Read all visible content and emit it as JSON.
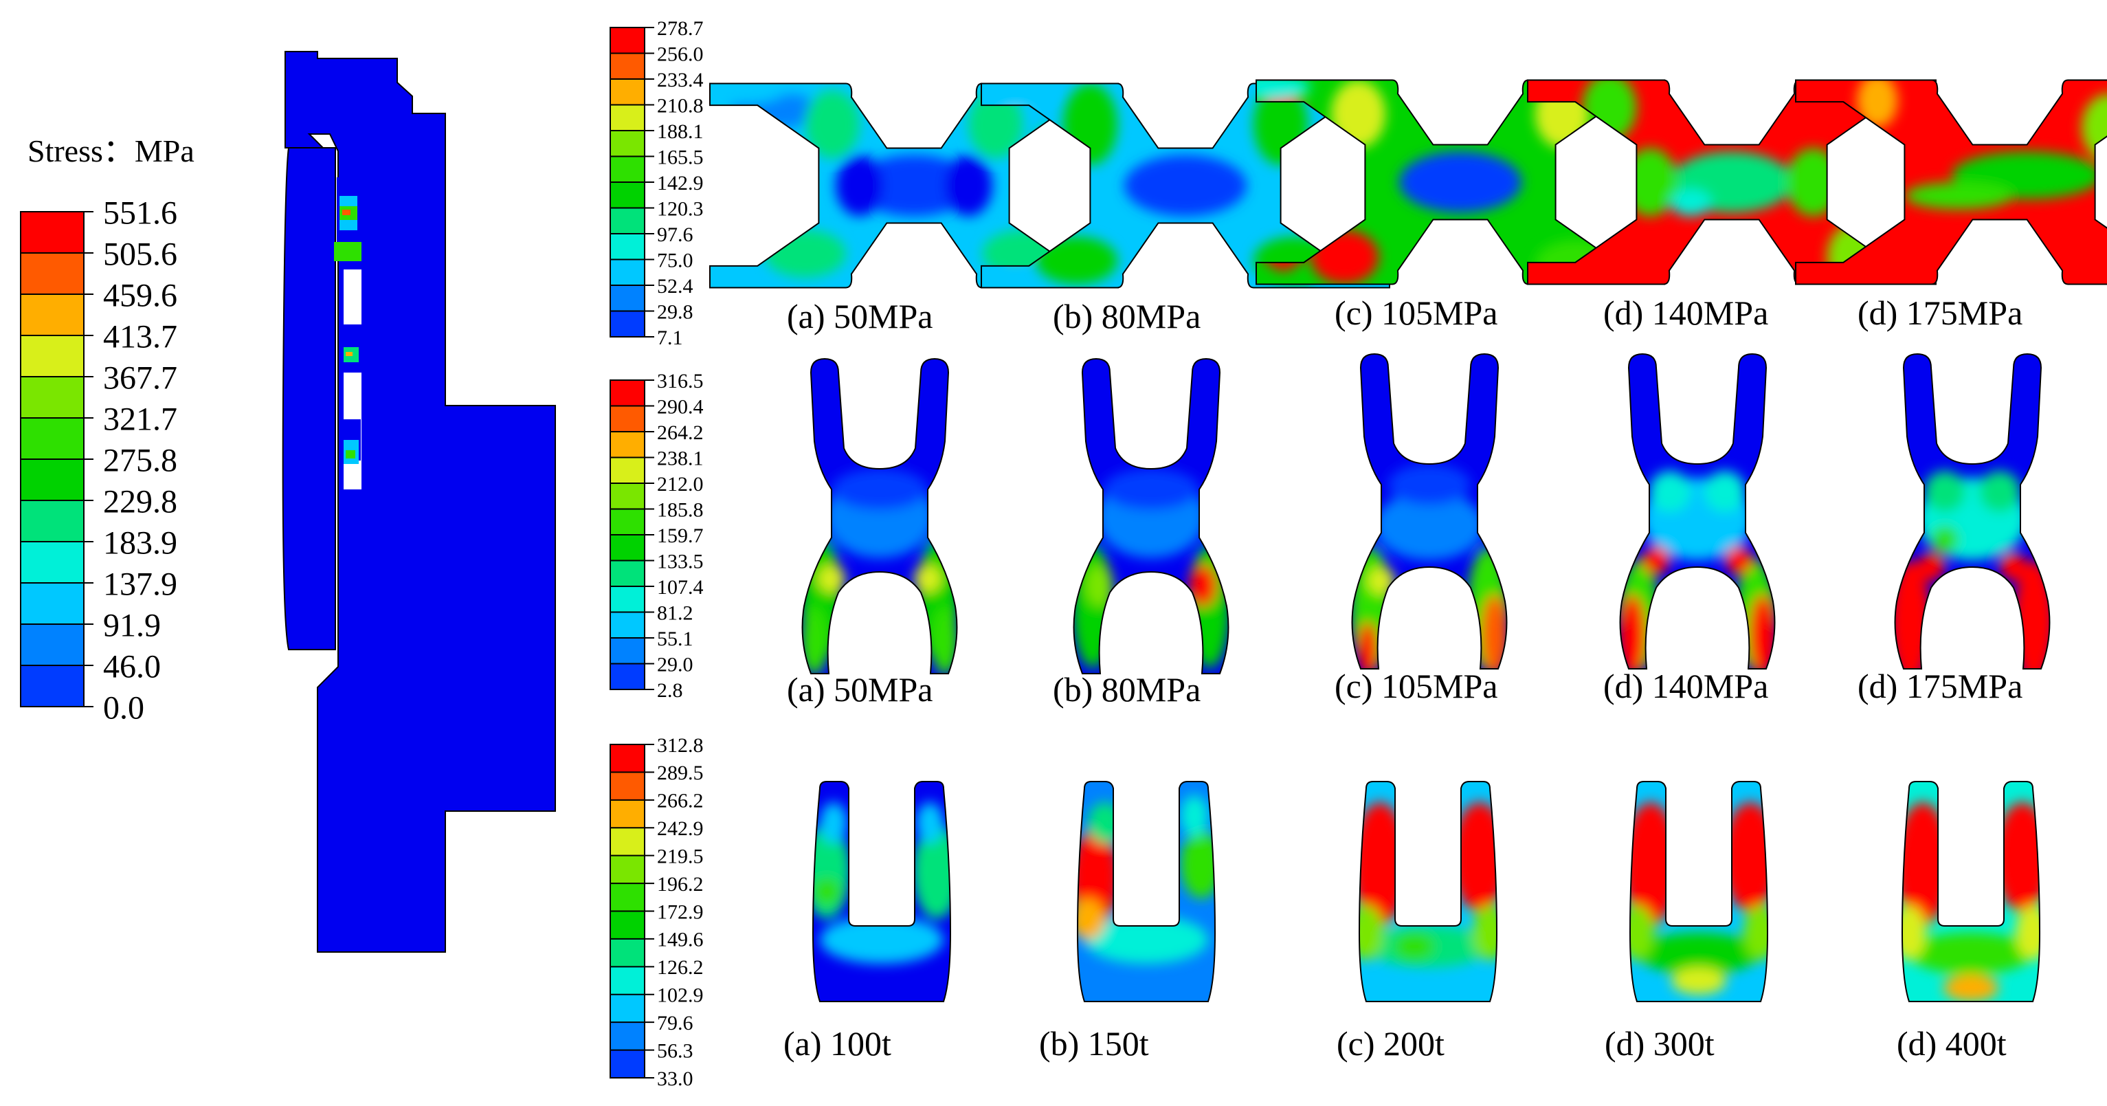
{
  "main_legend": {
    "title": "Stress：MPa",
    "values": [
      "551.6",
      "505.6",
      "459.6",
      "413.7",
      "367.7",
      "321.7",
      "275.8",
      "229.8",
      "183.9",
      "137.9",
      "91.9",
      "46.0",
      "0.0"
    ]
  },
  "legend_row1": {
    "values": [
      "278.7",
      "256.0",
      "233.4",
      "210.8",
      "188.1",
      "165.5",
      "142.9",
      "120.3",
      "97.6",
      "75.0",
      "52.4",
      "29.8",
      "7.1"
    ]
  },
  "legend_row2": {
    "values": [
      "316.5",
      "290.4",
      "264.2",
      "238.1",
      "212.0",
      "185.8",
      "159.7",
      "133.5",
      "107.4",
      "81.2",
      "55.1",
      "29.0",
      "2.8"
    ]
  },
  "legend_row3": {
    "values": [
      "312.8",
      "289.5",
      "266.2",
      "242.9",
      "219.5",
      "196.2",
      "172.9",
      "149.6",
      "126.2",
      "102.9",
      "79.6",
      "56.3",
      "33.0"
    ]
  },
  "row1_captions": [
    "(a) 50MPa",
    "(b) 80MPa",
    "(c) 105MPa",
    "(d) 140MPa",
    "(d) 175MPa"
  ],
  "row2_captions": [
    "(a) 50MPa",
    "(b) 80MPa",
    "(c) 105MPa",
    "(d) 140MPa",
    "(d) 175MPa"
  ],
  "row3_captions": [
    "(a) 100t",
    "(b) 150t",
    "(c) 200t",
    "(d) 300t",
    "(d) 400t"
  ],
  "colormap": [
    "#ff0000",
    "#ff5a00",
    "#ffae00",
    "#d8ef1a",
    "#7ae600",
    "#2ee000",
    "#00d200",
    "#00e27a",
    "#00f0d8",
    "#00c8ff",
    "#0082ff",
    "#003cff",
    "#0000f0"
  ]
}
